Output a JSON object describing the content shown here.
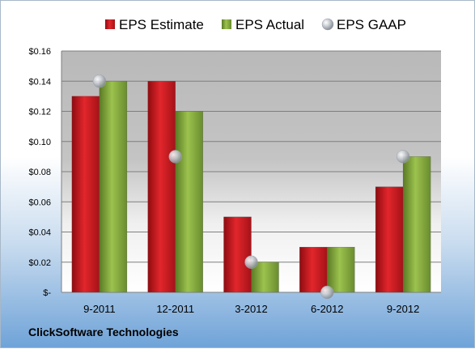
{
  "chart_data": {
    "type": "bar",
    "categories": [
      "9-2011",
      "12-2011",
      "3-2012",
      "6-2012",
      "9-2012"
    ],
    "series": [
      {
        "name": "EPS Estimate",
        "type": "bar",
        "values": [
          0.13,
          0.14,
          0.05,
          0.03,
          0.07
        ],
        "color": "#c0171d"
      },
      {
        "name": "EPS Actual",
        "type": "bar",
        "values": [
          0.14,
          0.12,
          0.02,
          0.03,
          0.09
        ],
        "color": "#7fa23a"
      },
      {
        "name": "EPS GAAP",
        "type": "scatter",
        "values": [
          0.14,
          0.09,
          0.02,
          0.0,
          0.09
        ],
        "color": "#b8bcc4"
      }
    ],
    "yticks": [
      "$0.16",
      "$0.14",
      "$0.12",
      "$0.10",
      "$0.08",
      "$0.06",
      "$0.04",
      "$0.02",
      "$-"
    ],
    "ylim": [
      0,
      0.16
    ],
    "legend_position": "top",
    "grid": true
  },
  "footer": {
    "company": "ClickSoftware Technologies"
  }
}
